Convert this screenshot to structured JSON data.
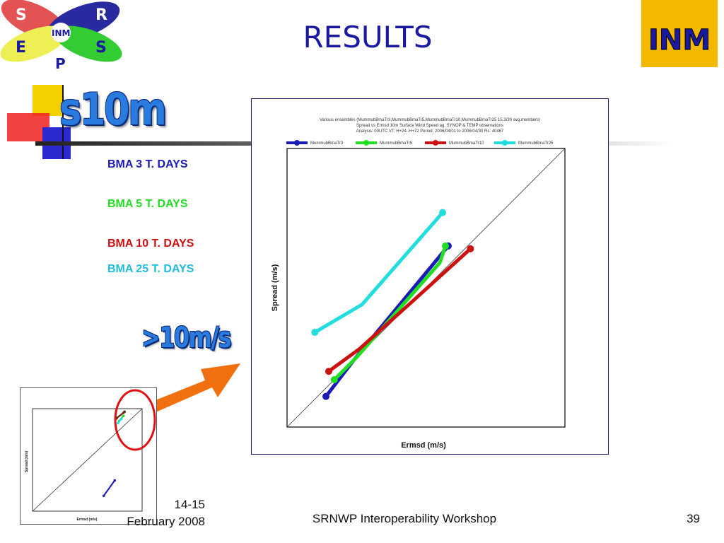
{
  "slide": {
    "title": "RESULTS",
    "parameter": "s10m",
    "highlight_label": ">10m/s",
    "legend": [
      {
        "label": "BMA 3 T. DAYS",
        "color": "#1a1ab4"
      },
      {
        "label": "BMA 5 T. DAYS",
        "color": "#22dd22"
      },
      {
        "label": "BMA 10 T. DAYS",
        "color": "#cc1111"
      },
      {
        "label": "BMA 25 T. DAYS",
        "color": "#22bbdd"
      }
    ],
    "logo_left": {
      "s": "S",
      "r": "R",
      "e": "E",
      "s2": "S",
      "p": "P",
      "center": "INM"
    },
    "logo_right": "INM",
    "footer": {
      "date_line1": "14-15",
      "date_line2": "February 2008",
      "event": "SRNWP Interoperability Workshop",
      "page": "39"
    }
  },
  "chart_data": [
    {
      "type": "line",
      "title": "Various ensembles (MummubBmaTr3,MummubBmaTr5,MummubBmaTr10,MummubBmaTr25 15.3/30 avg.members)",
      "subtitle_1": "Spread vs Ermsd 10m Surface Wind Speed ag. SYNOP & TEMP observations",
      "subtitle_2": "Analysis: 00UTC VT: H+24..H+72 Period: 2006/04/01 to 2006/04/30 Rs: 40467",
      "xlabel": "Ermsd (m/s)",
      "ylabel": "Spread (m/s)",
      "xlim": [
        0,
        10
      ],
      "ylim": [
        0,
        10
      ],
      "diagonal": true,
      "legend_position": "top",
      "series": [
        {
          "name": "MummubBmaTr3",
          "color": "#1a1ab4",
          "x": [
            1.4,
            2.4,
            5.8
          ],
          "y": [
            1.1,
            2.4,
            6.5
          ]
        },
        {
          "name": "MummubBmaTr5",
          "color": "#22dd22",
          "x": [
            1.7,
            2.5,
            5.5,
            5.7
          ],
          "y": [
            1.7,
            2.5,
            5.9,
            6.5
          ]
        },
        {
          "name": "MummubBmaTr10",
          "color": "#cc1111",
          "x": [
            1.5,
            2.6,
            4.5,
            6.6
          ],
          "y": [
            2.0,
            2.8,
            4.5,
            6.4
          ]
        },
        {
          "name": "MummubBmaTr25",
          "color": "#22dddd",
          "x": [
            1.0,
            2.7,
            5.6
          ],
          "y": [
            3.4,
            4.4,
            7.7
          ]
        }
      ]
    },
    {
      "type": "line",
      "xlabel": "Ermsd (m/s)",
      "ylabel": "Spread (m/s)",
      "diagonal": true,
      "xlim": [
        0,
        10
      ],
      "ylim": [
        0,
        10
      ],
      "series": [
        {
          "name": "",
          "color": "#1a1ab4",
          "x": [
            6.5,
            7.5
          ],
          "y": [
            1.5,
            3.0
          ]
        },
        {
          "name": "",
          "color": "#22dd22",
          "x": [
            7.9,
            8.3
          ],
          "y": [
            8.8,
            9.3
          ]
        },
        {
          "name": "",
          "color": "#cc1111",
          "x": [
            7.6,
            8.3
          ],
          "y": [
            9.0,
            9.6
          ]
        },
        {
          "name": "",
          "color": "#553311",
          "x": [
            7.7,
            8.4
          ],
          "y": [
            9.1,
            9.7
          ]
        },
        {
          "name": "",
          "color": "#22dddd",
          "x": [
            7.8,
            8.1
          ],
          "y": [
            8.6,
            9.0
          ]
        }
      ]
    }
  ]
}
